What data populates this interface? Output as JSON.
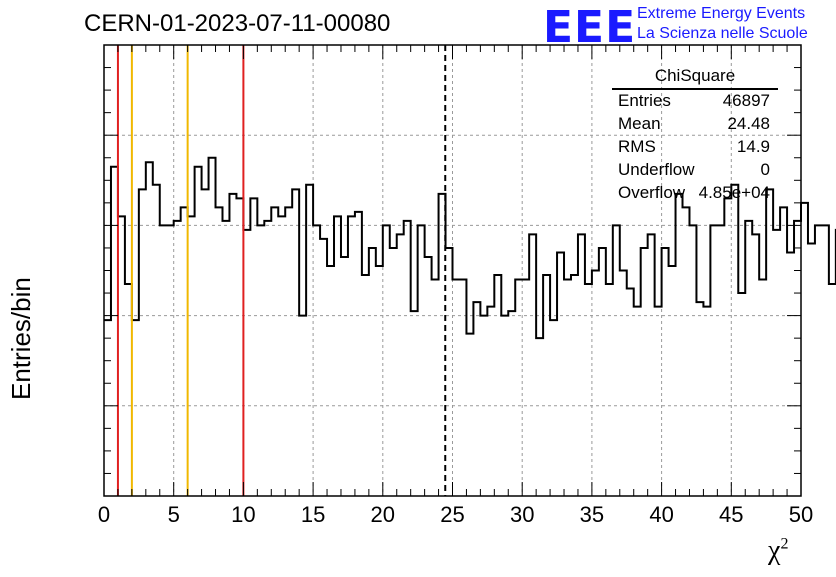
{
  "header": {
    "title": "CERN-01-2023-07-11-00080",
    "logo": "EEE",
    "logo_line1": "Extreme Energy Events",
    "logo_line2": "La Scienza nelle Scuole"
  },
  "axes": {
    "ylabel": "Entries/bin",
    "xlabel": "χ",
    "xlabel_sup": "2"
  },
  "stats": {
    "title": "ChiSquare",
    "rows": [
      {
        "k": "Entries",
        "v": "46897"
      },
      {
        "k": "Mean",
        "v": "24.48"
      },
      {
        "k": "RMS",
        "v": "14.9"
      },
      {
        "k": "Underflow",
        "v": "0"
      },
      {
        "k": "Overflow",
        "v": "4.85e+04"
      }
    ]
  },
  "chart_data": {
    "type": "histogram",
    "title": "CERN-01-2023-07-11-00080",
    "xlabel": "χ2",
    "ylabel": "Entries/bin",
    "xlim": [
      0,
      50
    ],
    "ylim": [
      0,
      1
    ],
    "bin_width": 0.5,
    "xticks": [
      "0",
      "5",
      "10",
      "15",
      "20",
      "25",
      "30",
      "35",
      "40",
      "45",
      "50"
    ],
    "grid": true,
    "values": [
      0.39,
      0.73,
      0.62,
      0.47,
      0.39,
      0.68,
      0.74,
      0.69,
      0.6,
      0.6,
      0.61,
      0.64,
      0.62,
      0.73,
      0.68,
      0.75,
      0.64,
      0.61,
      0.67,
      0.66,
      0.59,
      0.66,
      0.6,
      0.61,
      0.64,
      0.62,
      0.64,
      0.68,
      0.4,
      0.69,
      0.6,
      0.57,
      0.51,
      0.62,
      0.53,
      0.62,
      0.63,
      0.49,
      0.55,
      0.51,
      0.6,
      0.55,
      0.58,
      0.61,
      0.41,
      0.6,
      0.53,
      0.48,
      0.67,
      0.55,
      0.48,
      0.48,
      0.36,
      0.43,
      0.4,
      0.42,
      0.49,
      0.4,
      0.41,
      0.48,
      0.48,
      0.58,
      0.35,
      0.49,
      0.39,
      0.54,
      0.48,
      0.49,
      0.58,
      0.47,
      0.5,
      0.55,
      0.47,
      0.6,
      0.5,
      0.46,
      0.42,
      0.55,
      0.58,
      0.42,
      0.55,
      0.51,
      0.67,
      0.64,
      0.6,
      0.43,
      0.42,
      0.6,
      0.6,
      0.66,
      0.69,
      0.45,
      0.61,
      0.58,
      0.48,
      0.68,
      0.59,
      0.64,
      0.54,
      0.61,
      0.65,
      0.56,
      0.6,
      0.6,
      0.47,
      0.59,
      0.5,
      0.53,
      0.62,
      0.72,
      0.62,
      0.62,
      0.64,
      0.46,
      0.64,
      0.68,
      0.63,
      0.64,
      0.56,
      0.55,
      0.6,
      0.59,
      0.69,
      0.58,
      0.69,
      0.66,
      0.68,
      0.6,
      0.64,
      0.54,
      0.66,
      0.64,
      0.57,
      0.65,
      0.56,
      0.6,
      0.6,
      0.54,
      0.65,
      0.61,
      0.62,
      0.55,
      0.51,
      0.54,
      0.64,
      0.55,
      0.6,
      0.59,
      0.6,
      0.57
    ],
    "vertical_lines": [
      {
        "x": 1,
        "color": "#e02020",
        "style": "solid"
      },
      {
        "x": 2,
        "color": "#f0b800",
        "style": "solid"
      },
      {
        "x": 6,
        "color": "#f0b800",
        "style": "solid"
      },
      {
        "x": 10,
        "color": "#e02020",
        "style": "solid"
      },
      {
        "x": 24.48,
        "color": "#000000",
        "style": "dashed"
      }
    ]
  }
}
